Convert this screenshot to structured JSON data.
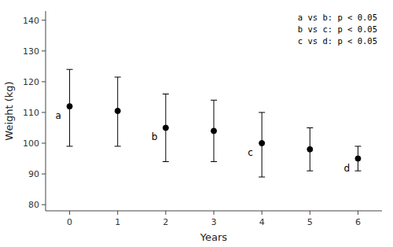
{
  "chart_data": {
    "type": "errorbar",
    "x": [
      0,
      1,
      2,
      3,
      4,
      5,
      6
    ],
    "values": [
      112.0,
      110.5,
      105.0,
      104.0,
      100.0,
      98.0,
      95.0
    ],
    "error_lower": [
      13.0,
      11.5,
      11.0,
      10.0,
      11.0,
      7.0,
      4.0
    ],
    "error_upper": [
      12.0,
      11.0,
      11.0,
      10.0,
      10.0,
      7.0,
      4.0
    ],
    "point_labels": [
      "a",
      null,
      "b",
      null,
      "c",
      null,
      "d"
    ],
    "annotations": [
      "a vs b: p < 0.05",
      "b vs c: p < 0.05",
      "c vs d: p < 0.05"
    ],
    "xlabel": "Years",
    "ylabel": "Weight (kg)",
    "xlim": [
      -0.5,
      6.5
    ],
    "ylim": [
      78,
      143
    ],
    "xticks": [
      0,
      1,
      2,
      3,
      4,
      5,
      6
    ],
    "yticks": [
      80,
      90,
      100,
      110,
      120,
      130,
      140
    ],
    "color": "black",
    "grid": false
  }
}
